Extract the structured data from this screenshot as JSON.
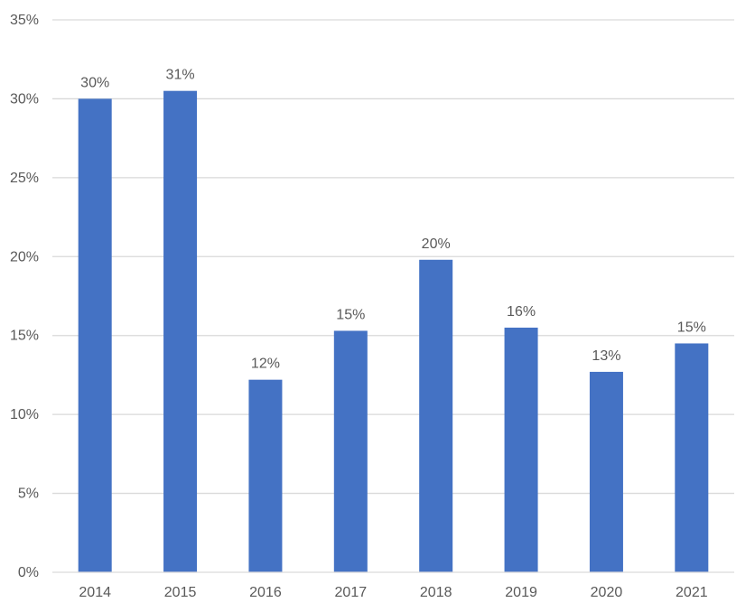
{
  "chart_data": {
    "type": "bar",
    "title": "",
    "xlabel": "",
    "ylabel": "",
    "categories": [
      "2014",
      "2015",
      "2016",
      "2017",
      "2018",
      "2019",
      "2020",
      "2021"
    ],
    "values": [
      30.0,
      30.5,
      12.2,
      15.3,
      19.8,
      15.5,
      12.7,
      14.5
    ],
    "data_labels": [
      "30%",
      "31%",
      "12%",
      "15%",
      "20%",
      "16%",
      "13%",
      "15%"
    ],
    "ylim": [
      0,
      35
    ],
    "yticks": [
      0,
      5,
      10,
      15,
      20,
      25,
      30,
      35
    ],
    "ytick_labels": [
      "0%",
      "5%",
      "10%",
      "15%",
      "20%",
      "25%",
      "30%",
      "35%"
    ],
    "grid": true,
    "legend": "none",
    "bar_color": "#4472c4"
  }
}
